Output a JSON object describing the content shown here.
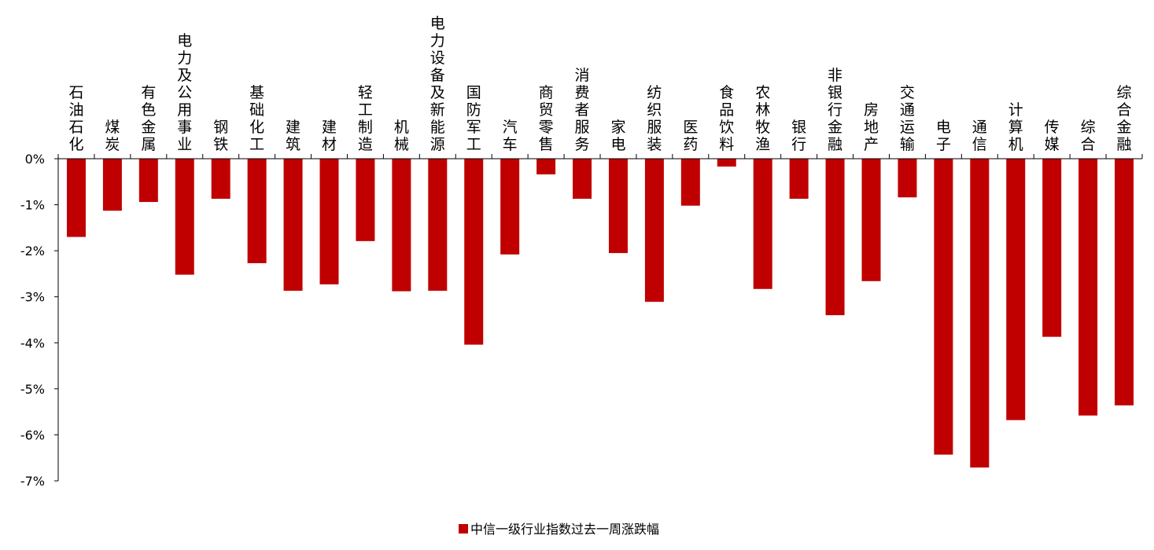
{
  "chart_data": {
    "type": "bar",
    "categories": [
      "石油石化",
      "煤炭",
      "有色金属",
      "电力及公用事业",
      "钢铁",
      "基础化工",
      "建筑",
      "建材",
      "轻工制造",
      "机械",
      "电力设备及新能源",
      "国防军工",
      "汽车",
      "商贸零售",
      "消费者服务",
      "家电",
      "纺织服装",
      "医药",
      "食品饮料",
      "农林牧渔",
      "银行",
      "非银行金融",
      "房地产",
      "交通运输",
      "电子",
      "通信",
      "计算机",
      "传媒",
      "综合",
      "综合金融"
    ],
    "series": [
      {
        "name": "中信一级行业指数过去一周涨跌幅",
        "values": [
          -1.7,
          -1.13,
          -0.94,
          -2.52,
          -0.87,
          -2.27,
          -2.87,
          -2.73,
          -1.79,
          -2.88,
          -2.87,
          -4.04,
          -2.08,
          -0.34,
          -0.87,
          -2.05,
          -3.11,
          -1.02,
          -0.17,
          -2.83,
          -0.87,
          -3.4,
          -2.66,
          -0.84,
          -6.43,
          -6.71,
          -5.68,
          -3.87,
          -5.58,
          -5.36
        ],
        "color": "#C00000"
      }
    ],
    "yticks": [
      "0%",
      "-1%",
      "-2%",
      "-3%",
      "-4%",
      "-5%",
      "-6%",
      "-7%"
    ],
    "ylim": [
      -7,
      0
    ],
    "grid": false,
    "legend": "bottom",
    "title": "",
    "xlabel": "",
    "ylabel": ""
  }
}
